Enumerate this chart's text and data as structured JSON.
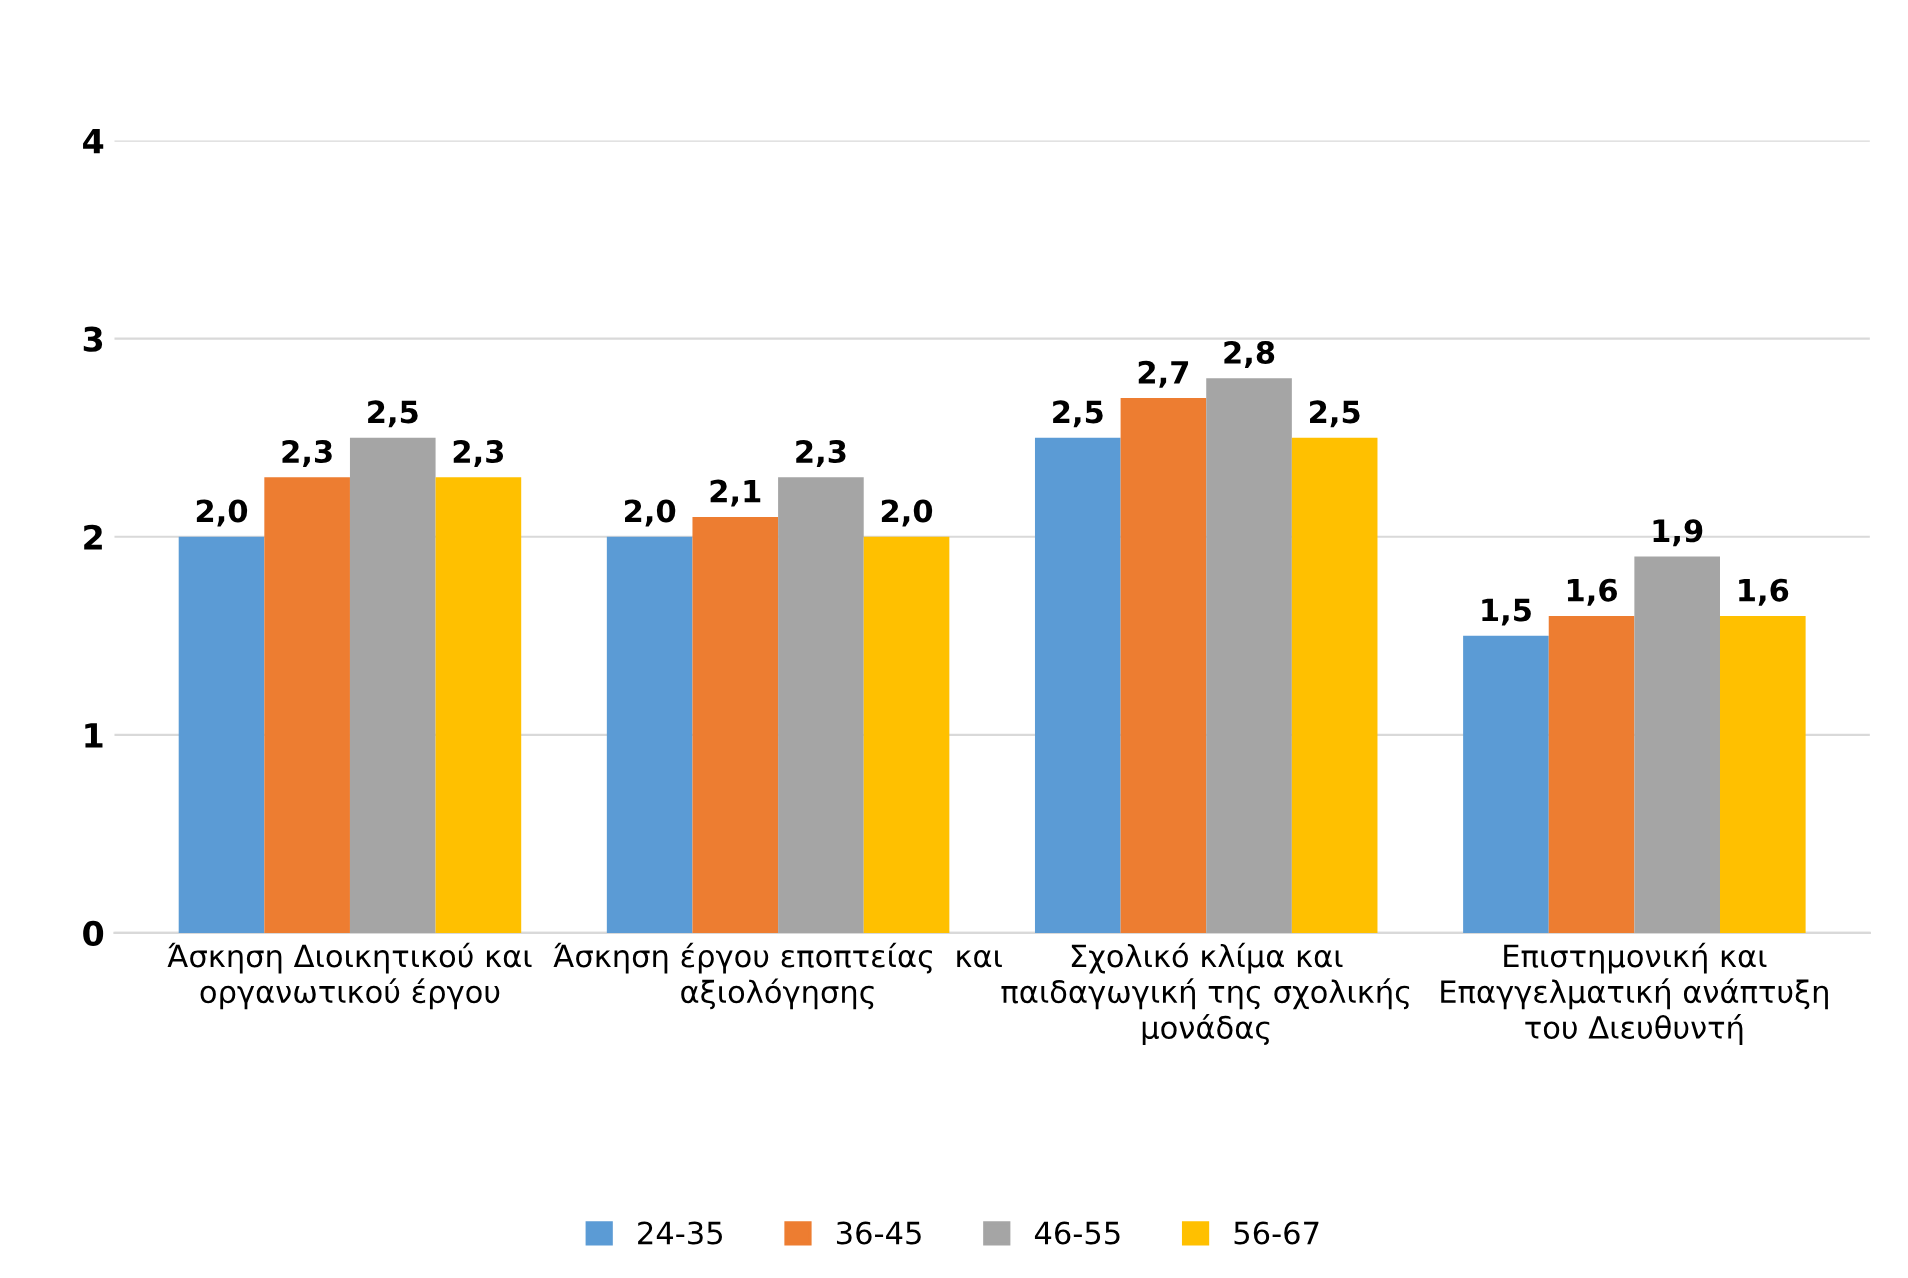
{
  "chart_data": {
    "type": "bar",
    "categories": [
      "Άσκηση Διοικητικού και\nοργανωτικού έργου",
      "Άσκηση έργου εποπτείας  και\nαξιολόγησης",
      "Σχολικό κλίμα και\nπαιδαγωγική της σχολικής\nμονάδας",
      "Επιστημονική και\nΕπαγγελματική ανάπτυξη\nτου Διευθυντή"
    ],
    "series": [
      {
        "name": "24-35",
        "color": "#5b9bd5",
        "values": [
          2.0,
          2.0,
          2.5,
          1.5
        ],
        "value_labels": [
          "2,0",
          "2,0",
          "2,5",
          "1,5"
        ]
      },
      {
        "name": "36-45",
        "color": "#ed7d31",
        "values": [
          2.3,
          2.1,
          2.7,
          1.6
        ],
        "value_labels": [
          "2,3",
          "2,1",
          "2,7",
          "1,6"
        ]
      },
      {
        "name": "46-55",
        "color": "#a5a5a5",
        "values": [
          2.5,
          2.3,
          2.8,
          1.9
        ],
        "value_labels": [
          "2,5",
          "2,3",
          "2,8",
          "1,9"
        ]
      },
      {
        "name": "56-67",
        "color": "#ffc000",
        "values": [
          2.3,
          2.0,
          2.5,
          1.6
        ],
        "value_labels": [
          "2,3",
          "2,0",
          "2,5",
          "1,6"
        ]
      }
    ],
    "ylim": [
      0,
      4
    ],
    "yticks": [
      0,
      1,
      2,
      3,
      4
    ],
    "grid": "y",
    "legend": "bottom"
  }
}
